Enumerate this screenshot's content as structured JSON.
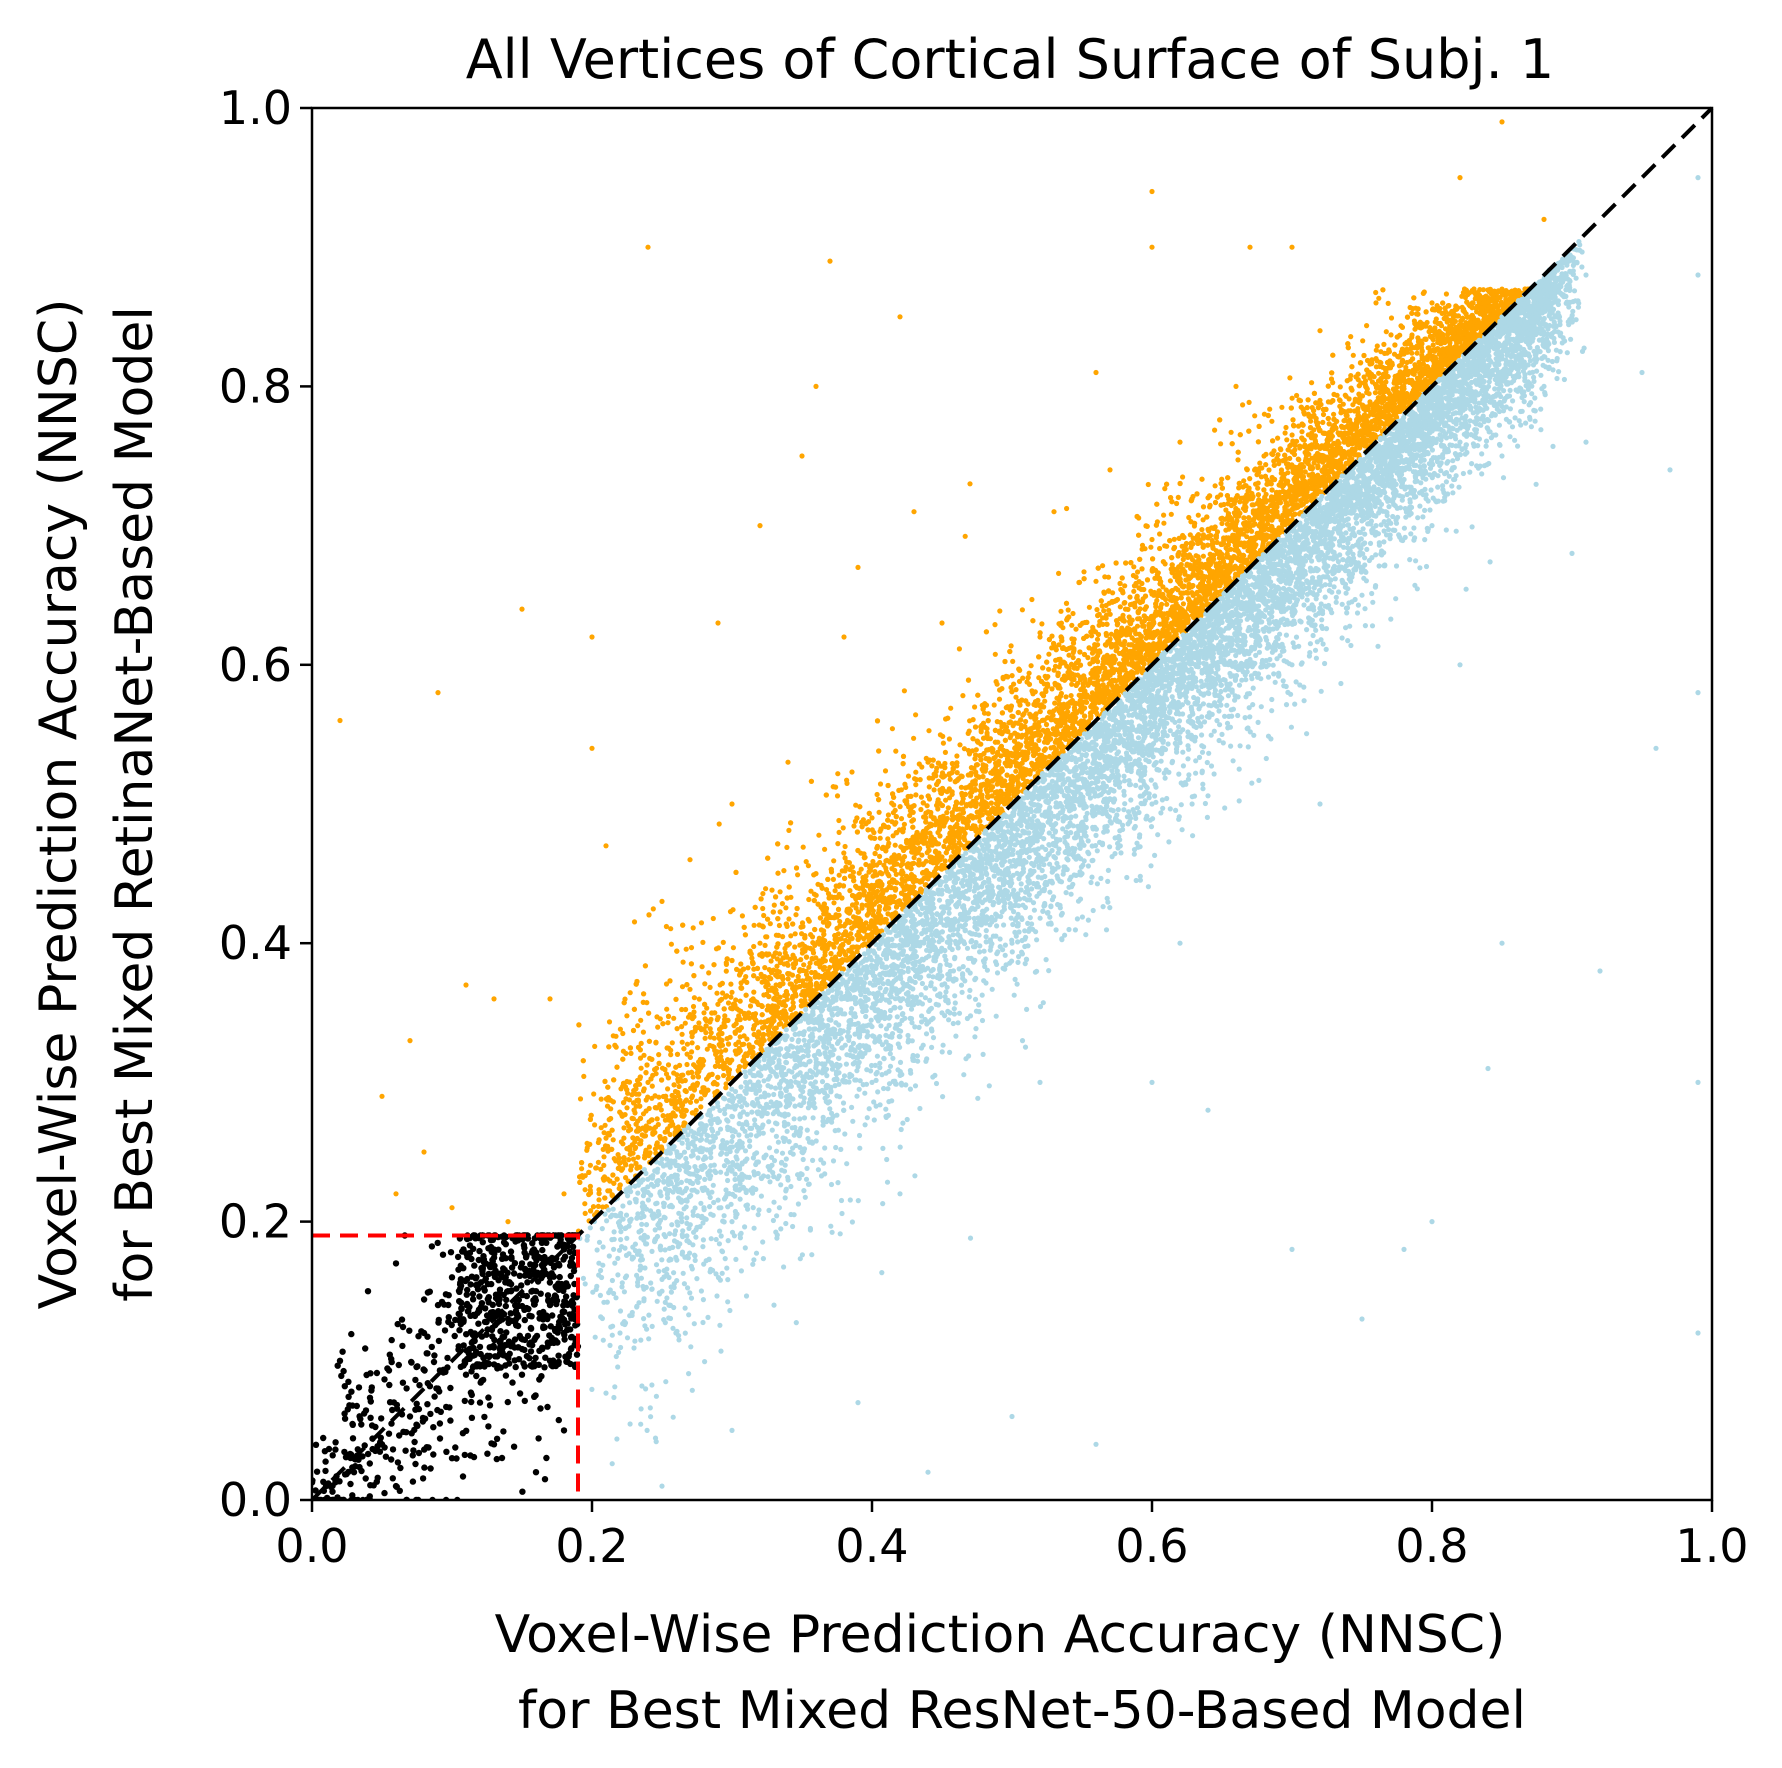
{
  "chart_data": {
    "type": "scatter",
    "title": "All Vertices of Cortical Surface of Subj. 1",
    "xlabel_lines": [
      "Voxel-Wise Prediction Accuracy (NNSC)",
      "for Best Mixed ResNet-50-Based Model"
    ],
    "ylabel_lines": [
      "Voxel-Wise Prediction Accuracy (NNSC)",
      "for Best Mixed RetinaNet-Based Model"
    ],
    "xlim": [
      0.0,
      1.0
    ],
    "ylim": [
      0.0,
      1.0
    ],
    "xticks": [
      "0.0",
      "0.2",
      "0.4",
      "0.6",
      "0.8",
      "1.0"
    ],
    "yticks": [
      "0.0",
      "0.2",
      "0.4",
      "0.6",
      "0.8",
      "1.0"
    ],
    "grid": false,
    "legend": "none",
    "threshold": 0.19,
    "reference_line": {
      "from": [
        0.0,
        0.0
      ],
      "to": [
        1.0,
        1.0
      ],
      "style": "dashed",
      "color": "#000000"
    },
    "threshold_box": {
      "x": [
        0.0,
        0.19
      ],
      "y": [
        0.0,
        0.19
      ],
      "style": "dashed",
      "color": "#ff0000"
    },
    "series": [
      {
        "color": "#ffa500",
        "description_key": "y_greater_than_x",
        "points": [
          [
            0.02,
            0.56
          ],
          [
            0.09,
            0.58
          ],
          [
            0.15,
            0.64
          ],
          [
            0.24,
            0.9
          ],
          [
            0.37,
            0.89
          ],
          [
            0.42,
            0.85
          ],
          [
            0.32,
            0.7
          ],
          [
            0.36,
            0.8
          ],
          [
            0.35,
            0.75
          ],
          [
            0.6,
            0.94
          ],
          [
            0.6,
            0.9
          ],
          [
            0.67,
            0.9
          ],
          [
            0.7,
            0.9
          ],
          [
            0.85,
            0.99
          ],
          [
            0.82,
            0.95
          ],
          [
            0.88,
            0.92
          ],
          [
            0.2,
            0.62
          ],
          [
            0.29,
            0.63
          ],
          [
            0.2,
            0.54
          ],
          [
            0.17,
            0.36
          ],
          [
            0.05,
            0.29
          ],
          [
            0.07,
            0.33
          ],
          [
            0.11,
            0.37
          ],
          [
            0.13,
            0.36
          ],
          [
            0.08,
            0.25
          ],
          [
            0.47,
            0.73
          ],
          [
            0.43,
            0.71
          ],
          [
            0.56,
            0.81
          ],
          [
            0.39,
            0.67
          ],
          [
            0.3,
            0.5
          ],
          [
            0.25,
            0.43
          ],
          [
            0.21,
            0.47
          ],
          [
            0.27,
            0.46
          ],
          [
            0.34,
            0.53
          ],
          [
            0.38,
            0.62
          ],
          [
            0.45,
            0.63
          ],
          [
            0.53,
            0.71
          ],
          [
            0.57,
            0.74
          ],
          [
            0.62,
            0.76
          ],
          [
            0.66,
            0.8
          ],
          [
            0.72,
            0.84
          ],
          [
            0.76,
            0.86
          ],
          [
            0.8,
            0.86
          ],
          [
            0.83,
            0.87
          ],
          [
            0.52,
            0.62
          ],
          [
            0.48,
            0.57
          ],
          [
            0.44,
            0.53
          ],
          [
            0.4,
            0.49
          ],
          [
            0.36,
            0.45
          ],
          [
            0.32,
            0.4
          ],
          [
            0.28,
            0.35
          ],
          [
            0.24,
            0.3
          ],
          [
            0.21,
            0.26
          ],
          [
            0.18,
            0.22
          ],
          [
            0.14,
            0.2
          ],
          [
            0.1,
            0.21
          ],
          [
            0.06,
            0.22
          ],
          [
            0.56,
            0.66
          ],
          [
            0.6,
            0.69
          ],
          [
            0.64,
            0.72
          ],
          [
            0.68,
            0.75
          ],
          [
            0.72,
            0.79
          ],
          [
            0.76,
            0.82
          ],
          [
            0.8,
            0.84
          ]
        ]
      },
      {
        "color": "#add8e6",
        "description_key": "x_greater_than_y",
        "points": [
          [
            0.99,
            0.95
          ],
          [
            0.99,
            0.88
          ],
          [
            0.99,
            0.12
          ],
          [
            0.99,
            0.58
          ],
          [
            0.99,
            0.3
          ],
          [
            0.96,
            0.54
          ],
          [
            0.95,
            0.81
          ],
          [
            0.92,
            0.38
          ],
          [
            0.91,
            0.88
          ],
          [
            0.97,
            0.74
          ],
          [
            0.91,
            0.76
          ],
          [
            0.85,
            0.4
          ],
          [
            0.84,
            0.31
          ],
          [
            0.8,
            0.2
          ],
          [
            0.78,
            0.18
          ],
          [
            0.75,
            0.13
          ],
          [
            0.7,
            0.18
          ],
          [
            0.64,
            0.28
          ],
          [
            0.6,
            0.3
          ],
          [
            0.56,
            0.04
          ],
          [
            0.5,
            0.06
          ],
          [
            0.44,
            0.02
          ],
          [
            0.39,
            0.07
          ],
          [
            0.3,
            0.05
          ],
          [
            0.25,
            0.01
          ],
          [
            0.22,
            0.12
          ],
          [
            0.25,
            0.15
          ],
          [
            0.3,
            0.2
          ],
          [
            0.35,
            0.25
          ],
          [
            0.4,
            0.3
          ],
          [
            0.45,
            0.35
          ],
          [
            0.5,
            0.4
          ],
          [
            0.55,
            0.45
          ],
          [
            0.6,
            0.5
          ],
          [
            0.65,
            0.55
          ],
          [
            0.7,
            0.6
          ],
          [
            0.75,
            0.65
          ],
          [
            0.8,
            0.7
          ],
          [
            0.85,
            0.75
          ],
          [
            0.88,
            0.8
          ],
          [
            0.28,
            0.21
          ],
          [
            0.34,
            0.27
          ],
          [
            0.4,
            0.34
          ],
          [
            0.46,
            0.4
          ],
          [
            0.52,
            0.46
          ],
          [
            0.58,
            0.52
          ],
          [
            0.64,
            0.58
          ],
          [
            0.7,
            0.64
          ],
          [
            0.76,
            0.7
          ],
          [
            0.82,
            0.76
          ],
          [
            0.86,
            0.82
          ],
          [
            0.33,
            0.14
          ],
          [
            0.42,
            0.22
          ],
          [
            0.52,
            0.3
          ],
          [
            0.62,
            0.4
          ],
          [
            0.72,
            0.5
          ],
          [
            0.82,
            0.6
          ],
          [
            0.9,
            0.68
          ]
        ]
      },
      {
        "color": "#000000",
        "description_key": "below_threshold",
        "points": [
          [
            0.01,
            0.01
          ],
          [
            0.03,
            0.02
          ],
          [
            0.05,
            0.04
          ],
          [
            0.07,
            0.06
          ],
          [
            0.09,
            0.08
          ],
          [
            0.11,
            0.09
          ],
          [
            0.12,
            0.11
          ],
          [
            0.14,
            0.13
          ],
          [
            0.16,
            0.15
          ],
          [
            0.17,
            0.16
          ],
          [
            0.18,
            0.18
          ],
          [
            0.02,
            0.1
          ],
          [
            0.04,
            0.15
          ],
          [
            0.06,
            0.17
          ],
          [
            0.08,
            0.12
          ],
          [
            0.1,
            0.16
          ],
          [
            0.13,
            0.18
          ],
          [
            0.15,
            0.17
          ],
          [
            0.17,
            0.1
          ],
          [
            0.18,
            0.05
          ],
          [
            0.16,
            0.02
          ],
          [
            0.13,
            0.04
          ],
          [
            0.1,
            0.03
          ],
          [
            0.06,
            0.01
          ],
          [
            0.12,
            0.07
          ],
          [
            0.15,
            0.09
          ],
          [
            0.09,
            0.14
          ],
          [
            0.14,
            0.15
          ],
          [
            0.17,
            0.14
          ],
          [
            0.18,
            0.12
          ]
        ]
      }
    ]
  }
}
